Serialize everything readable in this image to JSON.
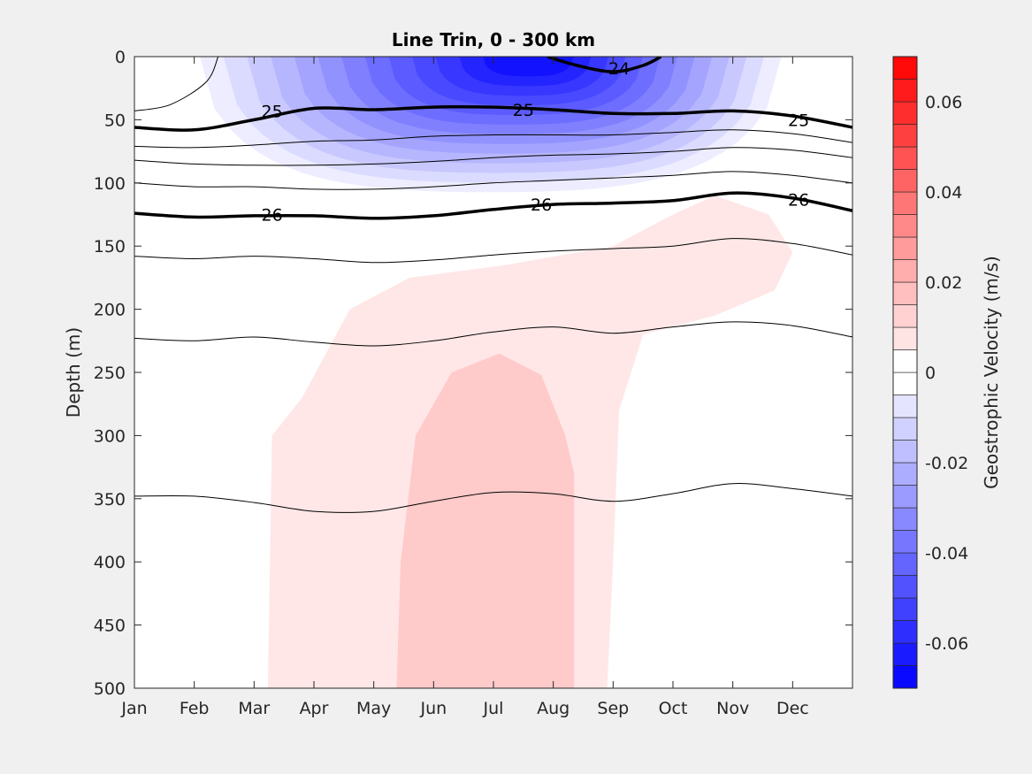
{
  "chart_data": {
    "type": "heatmap",
    "title": "Line Trin, 0 - 300 km",
    "xlabel": "",
    "ylabel": "Depth (m)",
    "x_categories": [
      "Jan",
      "Feb",
      "Mar",
      "Apr",
      "May",
      "Jun",
      "Jul",
      "Aug",
      "Sep",
      "Oct",
      "Nov",
      "Dec"
    ],
    "ylim": [
      0,
      500
    ],
    "y_reversed": true,
    "y_ticks": [
      0,
      50,
      100,
      150,
      200,
      250,
      300,
      350,
      400,
      450,
      500
    ],
    "colorbar": {
      "label": "Geostrophic Velocity (m/s)",
      "range": [
        -0.07,
        0.07
      ],
      "step": 0.005,
      "ticks": [
        -0.06,
        -0.04,
        -0.02,
        0,
        0.02,
        0.04,
        0.06
      ],
      "tick_labels": [
        "-0.06",
        "-0.04",
        "-0.02",
        "0",
        "0.02",
        "0.04",
        "0.06"
      ],
      "low_color": "#0000ff",
      "mid_color": "#ffffff",
      "high_color": "#ff0000"
    },
    "velocity_regions": [
      {
        "name": "surface-westward-flow",
        "sign": "negative",
        "peak_value": -0.065,
        "month_range": [
          0.7,
          11.1
        ],
        "depth_range": [
          0,
          115
        ],
        "peak_month": 6.7
      },
      {
        "name": "subsurface-eastward-flow",
        "sign": "positive",
        "peak_value": 0.012,
        "month_range": [
          2.2,
          10.9
        ],
        "depth_range": [
          110,
          500
        ]
      },
      {
        "name": "subsurface-eastward-core",
        "sign": "positive",
        "peak_value": 0.017,
        "month_range": [
          4.4,
          7.4
        ],
        "depth_range": [
          235,
          500
        ]
      }
    ],
    "isopycnals": [
      {
        "labeled": false,
        "months": [
          0,
          0.6,
          1.2,
          1.4
        ],
        "depths": [
          43,
          38,
          20,
          0
        ]
      },
      {
        "labeled": true,
        "label": "24",
        "months": [
          6.9,
          7.4,
          8.0,
          8.5,
          8.8
        ],
        "depths": [
          0,
          7,
          12,
          7,
          0
        ]
      },
      {
        "labeled": true,
        "label": "25",
        "months": [
          0,
          1,
          2,
          3,
          4,
          5,
          6,
          7,
          8,
          9,
          10,
          11,
          12
        ],
        "depths": [
          56,
          58,
          50,
          41,
          42,
          40,
          40,
          42,
          45,
          45,
          43,
          47,
          56
        ]
      },
      {
        "labeled": false,
        "months": [
          0,
          1,
          2,
          3,
          4,
          5,
          6,
          7,
          8,
          9,
          10,
          11,
          12
        ],
        "depths": [
          71,
          72,
          70,
          67,
          66,
          63,
          62,
          62,
          62,
          60,
          58,
          61,
          68
        ]
      },
      {
        "labeled": false,
        "months": [
          0,
          1,
          2,
          3,
          4,
          5,
          6,
          7,
          8,
          9,
          10,
          11,
          12
        ],
        "depths": [
          82,
          85,
          86,
          86,
          85,
          83,
          80,
          78,
          77,
          75,
          72,
          74,
          80
        ]
      },
      {
        "labeled": false,
        "months": [
          0,
          1,
          2,
          3,
          4,
          5,
          6,
          7,
          8,
          9,
          10,
          11,
          12
        ],
        "depths": [
          100,
          103,
          103,
          105,
          105,
          103,
          100,
          98,
          96,
          94,
          91,
          94,
          100
        ]
      },
      {
        "labeled": true,
        "label": "26",
        "months": [
          0,
          1,
          2,
          3,
          4,
          5,
          6,
          7,
          8,
          9,
          10,
          11,
          12
        ],
        "depths": [
          124,
          127,
          126,
          126,
          128,
          126,
          121,
          117,
          116,
          114,
          108,
          112,
          122
        ]
      },
      {
        "labeled": false,
        "months": [
          0,
          1,
          2,
          3,
          4,
          5,
          6,
          7,
          8,
          9,
          10,
          11,
          12
        ],
        "depths": [
          158,
          160,
          158,
          160,
          163,
          161,
          157,
          154,
          152,
          150,
          144,
          148,
          157
        ]
      },
      {
        "labeled": false,
        "months": [
          0,
          1,
          2,
          3,
          4,
          5,
          6,
          7,
          8,
          9,
          10,
          11,
          12
        ],
        "depths": [
          223,
          225,
          222,
          226,
          229,
          225,
          218,
          214,
          219,
          214,
          210,
          213,
          222
        ]
      },
      {
        "labeled": false,
        "months": [
          0,
          1,
          2,
          3,
          4,
          5,
          6,
          7,
          8,
          9,
          10,
          11,
          12
        ],
        "depths": [
          348,
          348,
          353,
          360,
          360,
          352,
          345,
          346,
          352,
          346,
          338,
          342,
          348
        ]
      }
    ],
    "contour_labels": [
      {
        "text": "24",
        "month": 8.1,
        "depth": 9
      },
      {
        "text": "25",
        "month": 2.3,
        "depth": 43
      },
      {
        "text": "25",
        "month": 6.5,
        "depth": 42
      },
      {
        "text": "25",
        "month": 11.1,
        "depth": 50
      },
      {
        "text": "26",
        "month": 2.3,
        "depth": 125
      },
      {
        "text": "26",
        "month": 6.8,
        "depth": 117
      },
      {
        "text": "26",
        "month": 11.1,
        "depth": 113
      }
    ],
    "grid": false,
    "legend": "colorbar-right"
  }
}
